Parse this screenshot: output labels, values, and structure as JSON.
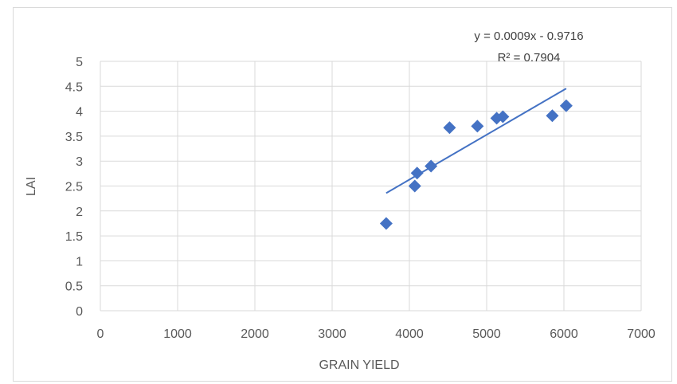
{
  "chart_data": {
    "type": "scatter",
    "title": "",
    "xlabel": "GRAIN YIELD",
    "ylabel": "LAI",
    "xlim": [
      0,
      7000
    ],
    "ylim": [
      0,
      5
    ],
    "x_ticks": [
      "0",
      "1000",
      "2000",
      "3000",
      "4000",
      "5000",
      "6000",
      "7000"
    ],
    "y_ticks": [
      "0",
      "0.5",
      "1",
      "1.5",
      "2",
      "2.5",
      "3",
      "3.5",
      "4",
      "4.5",
      "5"
    ],
    "grid": true,
    "legend": "none",
    "series": [
      {
        "marker": "diamond",
        "color": "#4472c4",
        "points": [
          {
            "x": 3700,
            "y": 1.75
          },
          {
            "x": 4070,
            "y": 2.5
          },
          {
            "x": 4100,
            "y": 2.76
          },
          {
            "x": 4280,
            "y": 2.9
          },
          {
            "x": 4520,
            "y": 3.67
          },
          {
            "x": 4880,
            "y": 3.7
          },
          {
            "x": 5130,
            "y": 3.86
          },
          {
            "x": 5210,
            "y": 3.89
          },
          {
            "x": 5850,
            "y": 3.91
          },
          {
            "x": 6030,
            "y": 4.11
          }
        ]
      }
    ],
    "trendline": {
      "type": "linear",
      "slope": 0.0009,
      "intercept": -0.9716,
      "x_range": [
        3700,
        6030
      ],
      "equation_label": "y = 0.0009x - 0.9716",
      "r2_label": "R² = 0.7904",
      "color": "#4472c4"
    }
  }
}
